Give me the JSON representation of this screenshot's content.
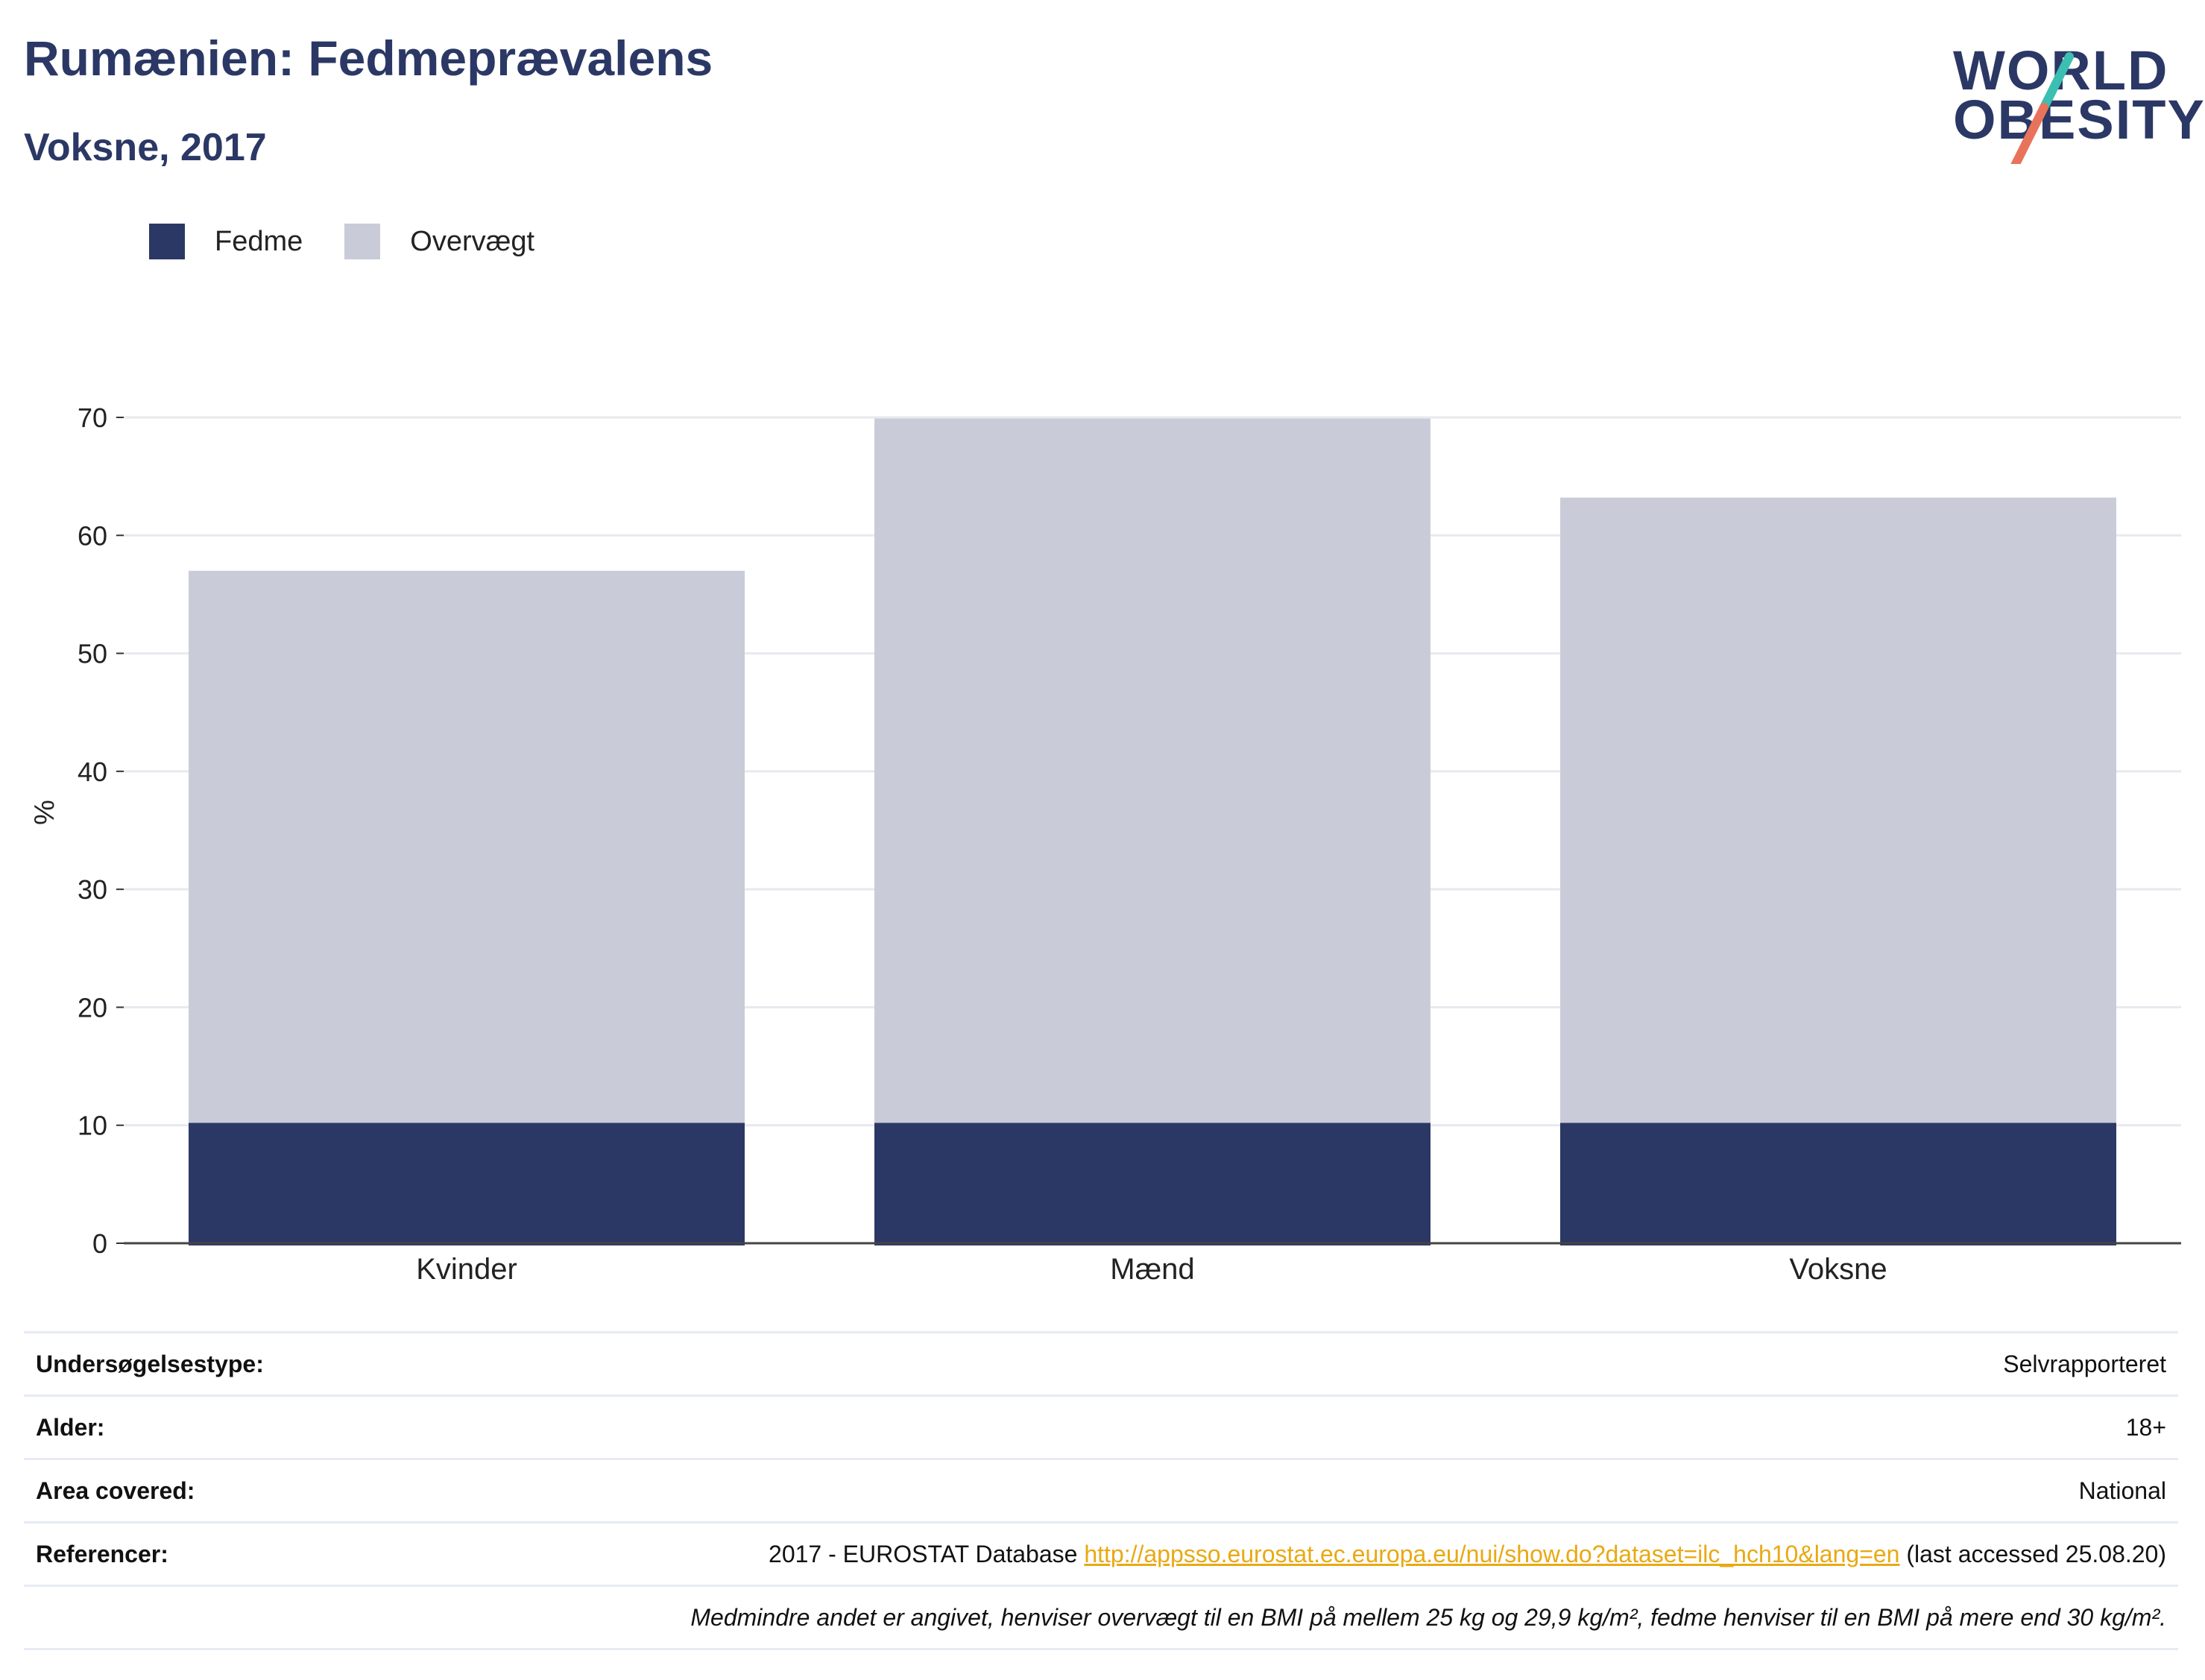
{
  "header": {
    "title": "Rumænien: Fedmeprævalens",
    "subtitle": "Voksne, 2017"
  },
  "logo": {
    "line1": "WORLD",
    "line2": "OBESITY",
    "colors": {
      "text": "#2b3865",
      "slash_top": "#3bbfb2",
      "slash_bottom": "#e8735a"
    }
  },
  "legend": {
    "items": [
      {
        "label": "Fedme",
        "color": "#2b3865"
      },
      {
        "label": "Overvægt",
        "color": "#c9ccd8"
      }
    ]
  },
  "chart_data": {
    "type": "bar",
    "stacked": false,
    "categories": [
      "Kvinder",
      "Mænd",
      "Voksne"
    ],
    "series": [
      {
        "name": "Fedme",
        "values": [
          10.2,
          10.2,
          10.2
        ],
        "color": "#2b3865"
      },
      {
        "name": "Overvægt",
        "values": [
          57.0,
          69.9,
          63.2
        ],
        "color": "#c9ccd8"
      }
    ],
    "title": "Rumænien: Fedmeprævalens",
    "subtitle": "Voksne, 2017",
    "xlabel": "",
    "ylabel": "%",
    "ylim": [
      0,
      70
    ],
    "yticks": [
      0,
      10,
      20,
      30,
      40,
      50,
      60,
      70
    ],
    "grid": true,
    "legend_position": "top-left"
  },
  "info_table": {
    "rows": [
      {
        "label": "Undersøgelsestype:",
        "value": "Selvrapporteret"
      },
      {
        "label": "Alder:",
        "value": "18+"
      },
      {
        "label": "Area covered:",
        "value": "National"
      },
      {
        "label": "Referencer:",
        "value_prefix": "2017 - EUROSTAT Database ",
        "link": "http://appsso.eurostat.ec.europa.eu/nui/show.do?dataset=ilc_hch10&lang=en",
        "value_suffix": " (last accessed 25.08.20)"
      }
    ],
    "note": "Medmindre andet er angivet, henviser overvægt til en BMI på mellem 25 kg og 29,9 kg/m², fedme henviser til en BMI på mere end 30 kg/m²."
  }
}
